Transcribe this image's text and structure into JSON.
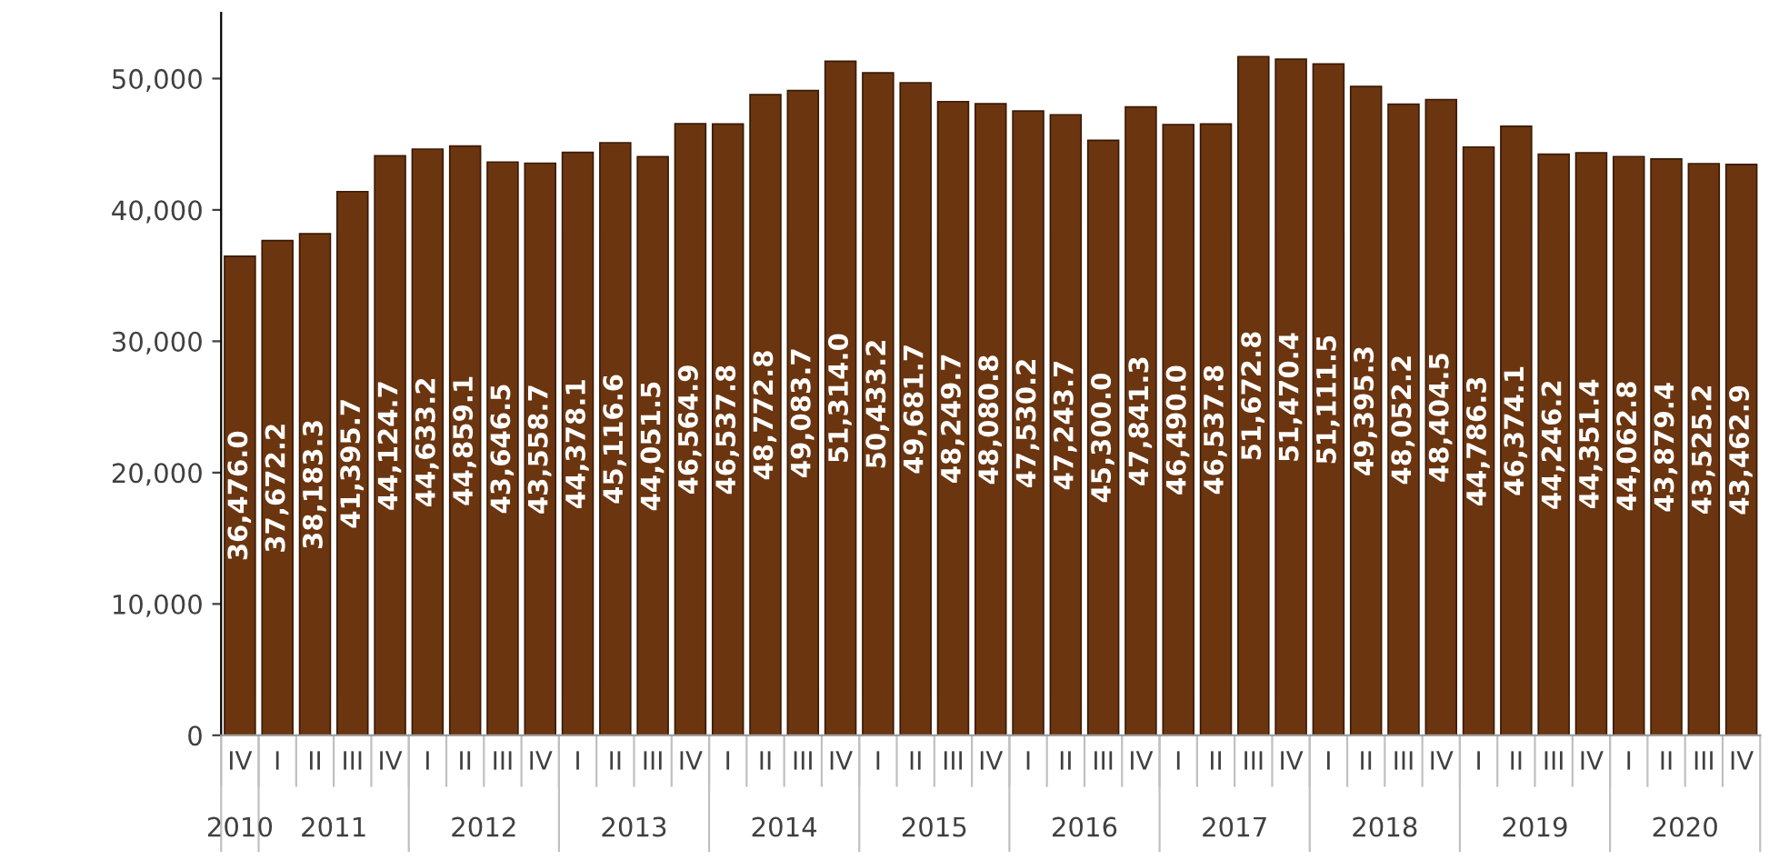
{
  "chart_data": {
    "type": "bar",
    "categories": [
      "IV",
      "I",
      "II",
      "III",
      "IV",
      "I",
      "II",
      "III",
      "IV",
      "I",
      "II",
      "III",
      "IV",
      "I",
      "II",
      "III",
      "IV",
      "I",
      "II",
      "III",
      "IV",
      "I",
      "II",
      "III",
      "IV",
      "I",
      "II",
      "III",
      "IV",
      "I",
      "II",
      "III",
      "IV",
      "I",
      "II",
      "III",
      "IV",
      "I",
      "II",
      "III",
      "IV"
    ],
    "values": [
      36476.0,
      37672.2,
      38183.3,
      41395.7,
      44124.7,
      44633.2,
      44859.1,
      43646.5,
      43558.7,
      44378.1,
      45116.6,
      44051.5,
      46564.9,
      46537.8,
      48772.8,
      49083.7,
      51314.0,
      50433.2,
      49681.7,
      48249.7,
      48080.8,
      47530.2,
      47243.7,
      45300.0,
      47841.3,
      46490.0,
      46537.8,
      51672.8,
      51470.4,
      51111.5,
      49395.3,
      48052.2,
      48404.5,
      44786.3,
      46374.1,
      44246.2,
      44351.4,
      44062.8,
      43879.4,
      43525.2,
      43462.9
    ],
    "color": "#6b3510",
    "ylim": [
      0,
      55000
    ],
    "yticks": [
      {
        "value": 0,
        "label": "0"
      },
      {
        "value": 10000,
        "label": "10,000"
      },
      {
        "value": 20000,
        "label": "20,000"
      },
      {
        "value": 30000,
        "label": "30,000"
      },
      {
        "value": 40000,
        "label": "40,000"
      },
      {
        "value": 50000,
        "label": "50,000"
      }
    ],
    "value_labels": [
      "36,476.0",
      "37,672.2",
      "38,183.3",
      "41,395.7",
      "44,124.7",
      "44,633.2",
      "44,859.1",
      "43,646.5",
      "43,558.7",
      "44,378.1",
      "45,116.6",
      "44,051.5",
      "46,564.9",
      "46,537.8",
      "48,772.8",
      "49,083.7",
      "51,314.0",
      "50,433.2",
      "49,681.7",
      "48,249.7",
      "48,080.8",
      "47,530.2",
      "47,243.7",
      "45,300.0",
      "47,841.3",
      "46,490.0",
      "46,537.8",
      "51,672.8",
      "51,470.4",
      "51,111.5",
      "49,395.3",
      "48,052.2",
      "48,404.5",
      "44,786.3",
      "46,374.1",
      "44,246.2",
      "44,351.4",
      "44,062.8",
      "43,879.4",
      "43,525.2",
      "43,462.9"
    ],
    "grid": false,
    "annotations": [
      "2010",
      "2011",
      "2012",
      "2013",
      "2014",
      "2015",
      "2016",
      "2017",
      "2018",
      "2019",
      "2020"
    ]
  }
}
